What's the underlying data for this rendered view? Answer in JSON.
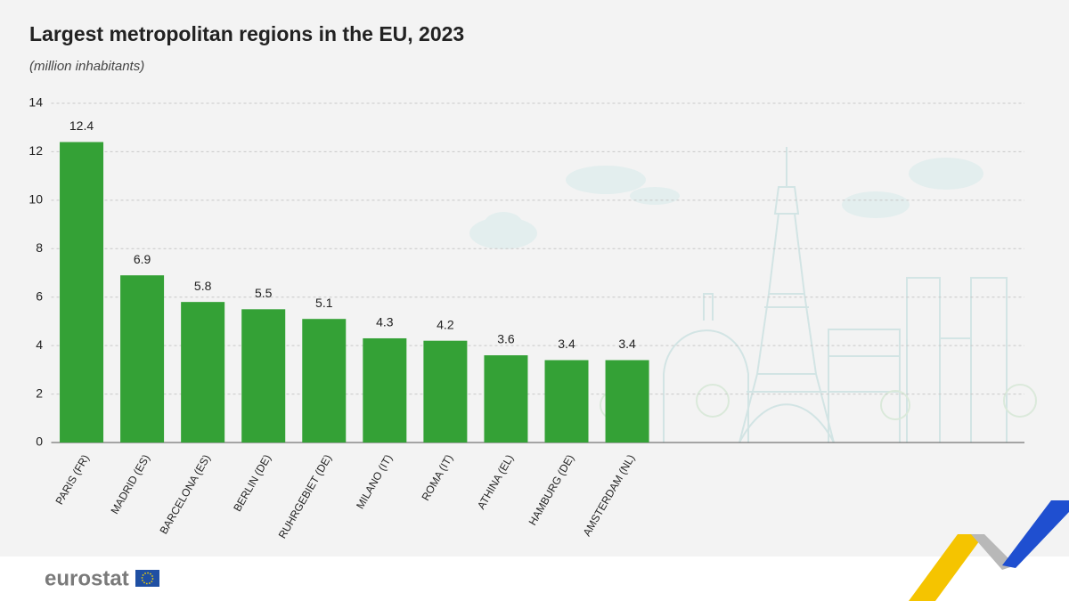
{
  "chart_data": {
    "type": "bar",
    "title": "Largest metropolitan regions in the EU, 2023",
    "subtitle": "(million inhabitants)",
    "categories": [
      "PARIS (FR)",
      "MADRID (ES)",
      "BARCELONA (ES)",
      "BERLIN (DE)",
      "RUHRGEBIET (DE)",
      "MILANO (IT)",
      "ROMA (IT)",
      "ATHINA (EL)",
      "HAMBURG (DE)",
      "AMSTERDAM (NL)"
    ],
    "values": [
      12.4,
      6.9,
      5.8,
      5.5,
      5.1,
      4.3,
      4.2,
      3.6,
      3.4,
      3.4
    ],
    "color": "#34a136",
    "ylim": [
      0,
      14
    ],
    "yticks": [
      0,
      2,
      4,
      6,
      8,
      10,
      12,
      14
    ],
    "grid": true
  },
  "footer": {
    "logo": "eurostat"
  }
}
